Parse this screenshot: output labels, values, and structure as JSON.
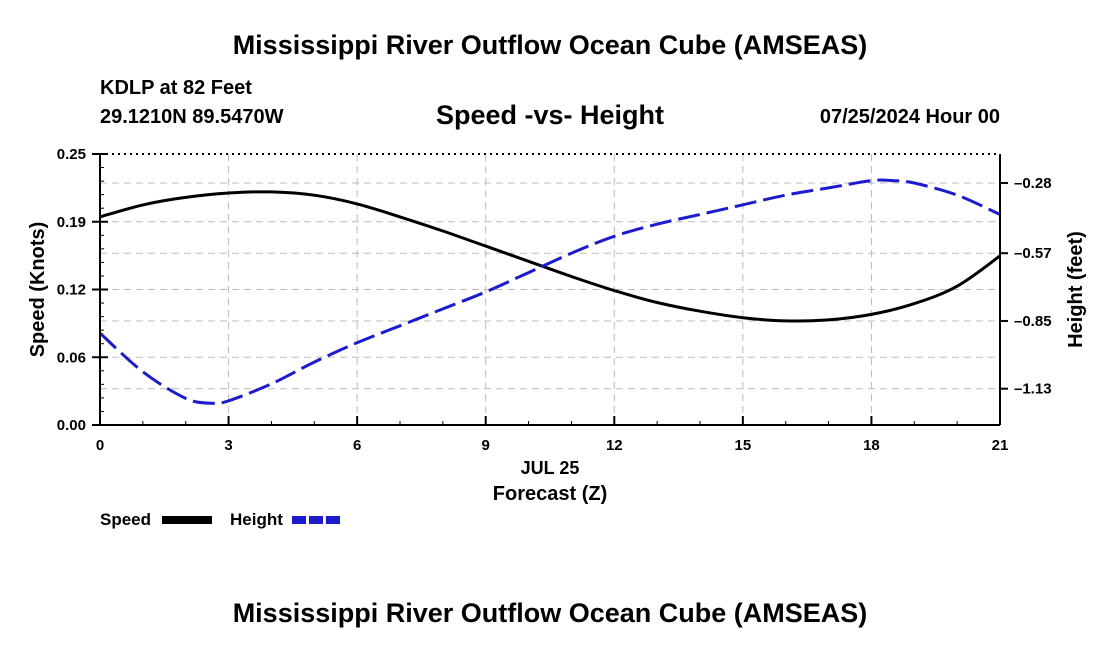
{
  "header": {
    "title": "Mississippi River Outflow Ocean Cube (AMSEAS)",
    "station": "KDLP at 82 Feet",
    "coords": "29.1210N  89.5470W",
    "subtitle": "Speed -vs- Height",
    "date": "07/25/2024 Hour 00"
  },
  "footer": {
    "title": "Mississippi River Outflow Ocean Cube (AMSEAS)"
  },
  "chart_data": {
    "type": "line",
    "title": "Speed -vs- Height",
    "xlabel": "Forecast (Z)",
    "date_label": "JUL 25",
    "ylabel": "Speed (Knots)",
    "y2label": "Height (feet)",
    "xlim": [
      0,
      21
    ],
    "ylim": [
      0,
      0.25
    ],
    "y2lim": [
      -1.28,
      -0.16
    ],
    "x_ticks": [
      0,
      3,
      6,
      9,
      12,
      15,
      18,
      21
    ],
    "x_tick_labels": [
      "0",
      "3",
      "6",
      "9",
      "12",
      "15",
      "18",
      "21"
    ],
    "y_ticks": [
      0,
      0.0625,
      0.125,
      0.1875,
      0.25
    ],
    "y_tick_labels": [
      "0.00",
      "0.06",
      "0.12",
      "0.19",
      "0.25"
    ],
    "y2_ticks": [
      -1.13,
      -0.85,
      -0.57,
      -0.28
    ],
    "y2_tick_labels": [
      "-1.13",
      "-0.85",
      "-0.57",
      "-0.28"
    ],
    "series": [
      {
        "name": "Speed",
        "axis": "left",
        "color": "#000000",
        "style": "solid",
        "x": [
          0,
          1,
          2,
          3,
          4,
          5,
          6,
          7,
          8,
          9,
          10,
          11,
          12,
          13,
          14,
          15,
          16,
          17,
          18,
          19,
          20,
          21
        ],
        "y": [
          0.192,
          0.203,
          0.21,
          0.214,
          0.215,
          0.212,
          0.204,
          0.192,
          0.179,
          0.165,
          0.151,
          0.137,
          0.124,
          0.113,
          0.105,
          0.099,
          0.096,
          0.097,
          0.102,
          0.112,
          0.128,
          0.156
        ]
      },
      {
        "name": "Height",
        "axis": "right",
        "color": "#1c1ccc",
        "style": "dashed",
        "x": [
          0,
          1,
          2,
          2.6,
          3,
          4,
          5,
          6,
          7,
          8,
          9,
          10,
          11,
          12,
          13,
          14,
          15,
          16,
          17,
          18,
          18.5,
          19,
          20,
          21
        ],
        "y": [
          -0.9,
          -1.06,
          -1.17,
          -1.19,
          -1.18,
          -1.11,
          -1.02,
          -0.94,
          -0.87,
          -0.8,
          -0.73,
          -0.65,
          -0.57,
          -0.5,
          -0.45,
          -0.41,
          -0.37,
          -0.33,
          -0.3,
          -0.27,
          -0.27,
          -0.28,
          -0.33,
          -0.41
        ]
      }
    ],
    "legend": [
      {
        "label": "Speed",
        "color": "#000000",
        "style": "solid"
      },
      {
        "label": "Height",
        "color": "#1c1ccc",
        "style": "dashed"
      }
    ],
    "grid": true
  }
}
